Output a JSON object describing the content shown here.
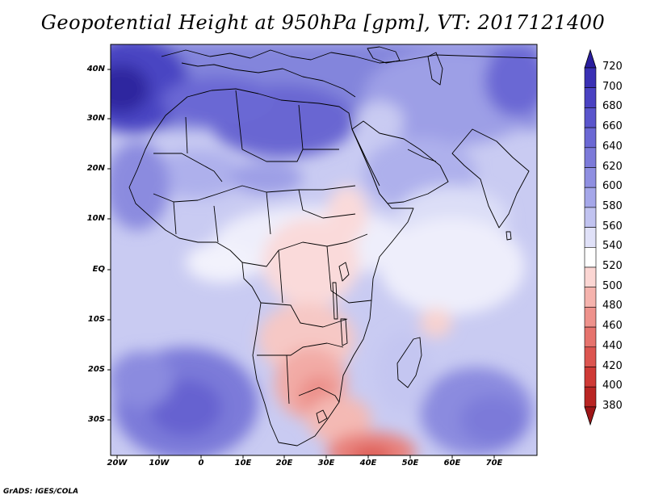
{
  "title": "Geopotential Height at 950hPa [gpm], VT: 2017121400",
  "credit": "GrADS: IGES/COLA",
  "map": {
    "region": "Africa",
    "lat_range": [
      -37,
      45
    ],
    "lon_range": [
      -22,
      80
    ],
    "lat_labels": [
      "40N",
      "30N",
      "20N",
      "10N",
      "EQ",
      "10S",
      "20S",
      "30S"
    ],
    "lon_labels": [
      "20W",
      "10W",
      "0",
      "10E",
      "20E",
      "30E",
      "40E",
      "50E",
      "60E",
      "70E"
    ]
  },
  "colorbar": {
    "levels": [
      "720",
      "700",
      "680",
      "660",
      "640",
      "620",
      "600",
      "580",
      "560",
      "540",
      "520",
      "500",
      "480",
      "460",
      "440",
      "420",
      "400",
      "380"
    ],
    "colors": [
      "#2a1e9e",
      "#3a30b4",
      "#4a42c2",
      "#5a55cc",
      "#6b68d4",
      "#7c7ad9",
      "#8f8fe1",
      "#a5a7e9",
      "#c1c3f0",
      "#e0e1f8",
      "#ffffff",
      "#fbd6d3",
      "#f5b3ad",
      "#ee928c",
      "#e6736d",
      "#dc5550",
      "#cf3a36",
      "#b92523",
      "#9e1517"
    ]
  },
  "colors": {
    "frame": "#000000",
    "land_outline": "#000000"
  }
}
